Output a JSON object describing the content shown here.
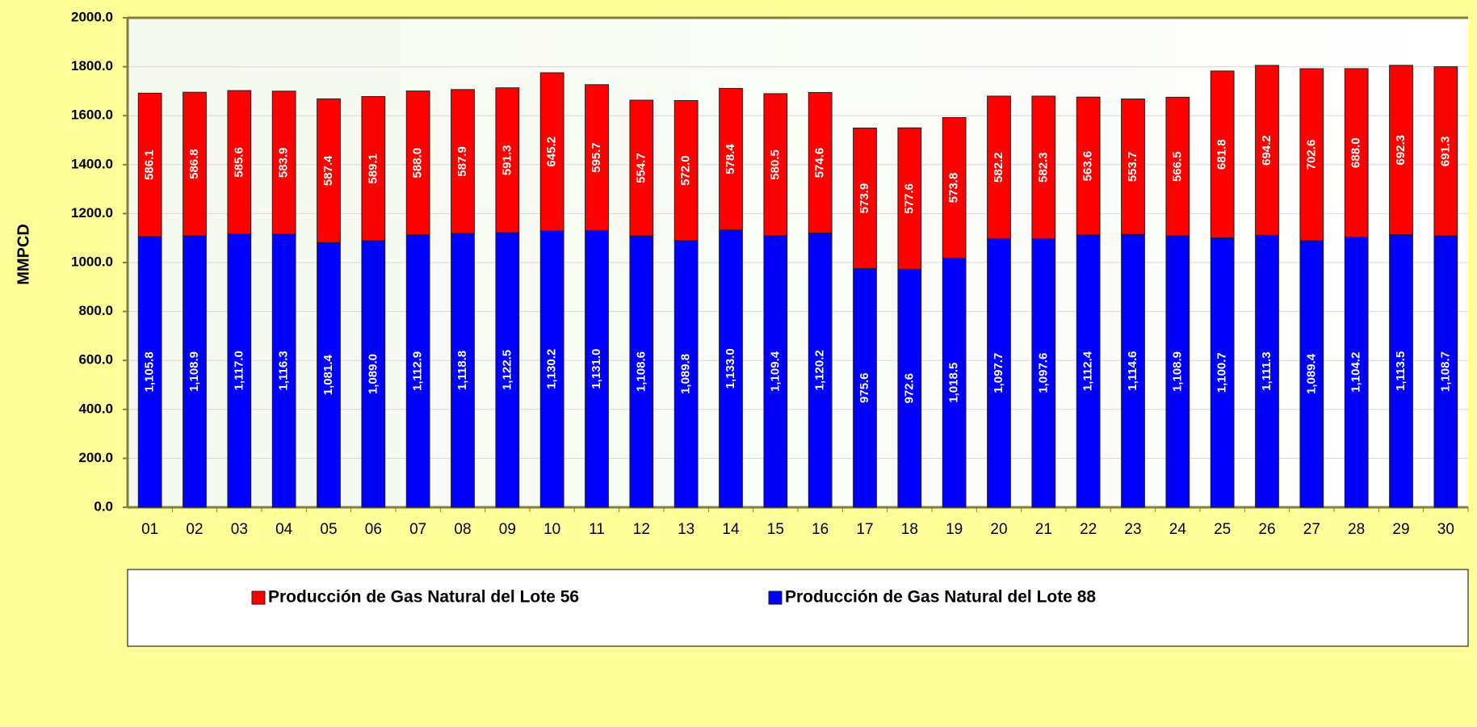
{
  "chart_data": {
    "type": "stacked_bar",
    "y_label": "MMPCD",
    "categories": [
      "01",
      "02",
      "03",
      "04",
      "05",
      "06",
      "07",
      "08",
      "09",
      "10",
      "11",
      "12",
      "13",
      "14",
      "15",
      "16",
      "17",
      "18",
      "19",
      "20",
      "21",
      "22",
      "23",
      "24",
      "25",
      "26",
      "27",
      "28",
      "29",
      "30"
    ],
    "series": [
      {
        "name": "Producción de Gas Natural del Lote 56",
        "color": "#ff0000",
        "values": [
          586.1,
          586.8,
          585.6,
          583.9,
          587.4,
          589.1,
          588.0,
          587.9,
          591.3,
          645.2,
          595.7,
          554.7,
          572.0,
          578.4,
          580.5,
          574.6,
          573.9,
          577.6,
          573.8,
          582.2,
          582.3,
          563.6,
          553.7,
          566.5,
          681.8,
          694.2,
          702.6,
          688.0,
          692.3,
          691.3
        ],
        "value_labels": [
          "586.1",
          "586.8",
          "585.6",
          "583.9",
          "587.4",
          "589.1",
          "588.0",
          "587.9",
          "591.3",
          "645.2",
          "595.7",
          "554.7",
          "572.0",
          "578.4",
          "580.5",
          "574.6",
          "573.9",
          "577.6",
          "573.8",
          "582.2",
          "582.3",
          "563.6",
          "553.7",
          "566.5",
          "681.8",
          "694.2",
          "702.6",
          "688.0",
          "692.3",
          "691.3"
        ]
      },
      {
        "name": "Producción de Gas Natural del Lote 88",
        "color": "#0000ff",
        "values": [
          1105.8,
          1108.9,
          1117.0,
          1116.3,
          1081.4,
          1089.0,
          1112.9,
          1118.8,
          1122.5,
          1130.2,
          1131.0,
          1108.6,
          1089.8,
          1133.0,
          1109.4,
          1120.2,
          975.6,
          972.6,
          1018.5,
          1097.7,
          1097.6,
          1112.4,
          1114.6,
          1108.9,
          1100.7,
          1111.3,
          1089.4,
          1104.2,
          1113.5,
          1108.7
        ],
        "value_labels": [
          "1,105.8",
          "1,108.9",
          "1,117.0",
          "1,116.3",
          "1,081.4",
          "1,089.0",
          "1,112.9",
          "1,118.8",
          "1,122.5",
          "1,130.2",
          "1,131.0",
          "1,108.6",
          "1,089.8",
          "1,133.0",
          "1,109.4",
          "1,120.2",
          "975.6",
          "972.6",
          "1,018.5",
          "1,097.7",
          "1,097.6",
          "1,112.4",
          "1,114.6",
          "1,108.9",
          "1,100.7",
          "1,111.3",
          "1,089.4",
          "1,104.2",
          "1,113.5",
          "1,108.7"
        ]
      }
    ],
    "stack_order": [
      1,
      0
    ],
    "ylim": [
      0,
      2000
    ],
    "yticks": [
      {
        "value": 0,
        "label": "0.0"
      },
      {
        "value": 200,
        "label": "200.0"
      },
      {
        "value": 400,
        "label": "400.0"
      },
      {
        "value": 600,
        "label": "600.0"
      },
      {
        "value": 800,
        "label": "800.0"
      },
      {
        "value": 1000,
        "label": "1000.0"
      },
      {
        "value": 1200,
        "label": "1200.0"
      },
      {
        "value": 1400,
        "label": "1400.0"
      },
      {
        "value": 1600,
        "label": "1600.0"
      },
      {
        "value": 1800,
        "label": "1800.0"
      },
      {
        "value": 2000,
        "label": "2000.0"
      }
    ],
    "grid": true
  }
}
